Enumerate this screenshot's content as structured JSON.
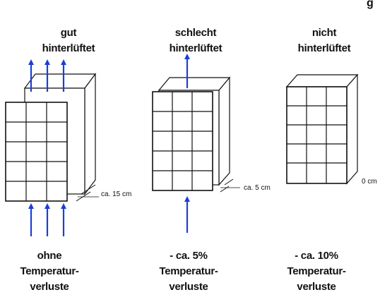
{
  "corner_text": "g",
  "colors": {
    "arrow": "#1a3fd6",
    "line": "#111111"
  },
  "panels": [
    {
      "heading": [
        "gut",
        "hinterlüftet"
      ],
      "gap_label": "ca. 15 cm",
      "footer": [
        "ohne",
        "Temperatur-",
        "verluste"
      ]
    },
    {
      "heading": [
        "schlecht",
        "hinterlüftet"
      ],
      "gap_label": "ca. 5 cm",
      "footer": [
        "- ca. 5%",
        "Temperatur-",
        "verluste"
      ]
    },
    {
      "heading": [
        "nicht",
        "hinterlüftet"
      ],
      "gap_label": "0 cm",
      "footer": [
        "- ca. 10%",
        "Temperatur-",
        "verluste"
      ]
    }
  ]
}
